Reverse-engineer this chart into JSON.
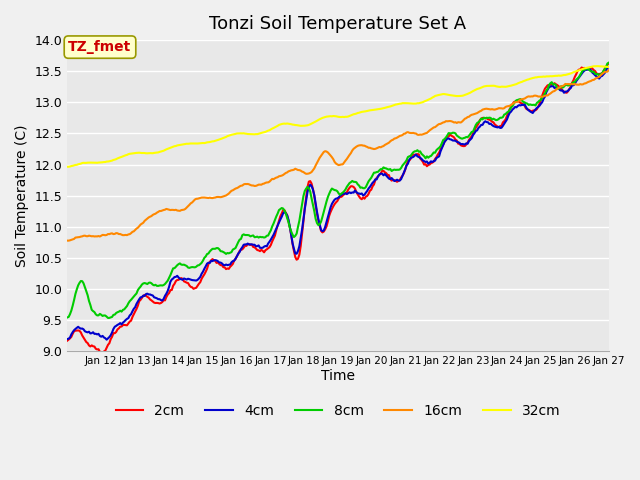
{
  "title": "Tonzi Soil Temperature Set A",
  "xlabel": "Time",
  "ylabel": "Soil Temperature (C)",
  "annotation": "TZ_fmet",
  "ylim": [
    9.0,
    14.0
  ],
  "yticks": [
    9.0,
    9.5,
    10.0,
    10.5,
    11.0,
    11.5,
    12.0,
    12.5,
    13.0,
    13.5,
    14.0
  ],
  "xlim_start": 11,
  "xlim_end": 27,
  "xtick_positions": [
    12,
    13,
    14,
    15,
    16,
    17,
    18,
    19,
    20,
    21,
    22,
    23,
    24,
    25,
    26,
    27
  ],
  "xtick_labels": [
    "Jan 12",
    "Jan 13",
    "Jan 14",
    "Jan 15",
    "Jan 16",
    "Jan 17",
    "Jan 18",
    "Jan 19",
    "Jan 20",
    "Jan 21",
    "Jan 22",
    "Jan 23",
    "Jan 24",
    "Jan 25",
    "Jan 26",
    "Jan 27"
  ],
  "line_colors": {
    "2cm": "#ff0000",
    "4cm": "#0000cc",
    "8cm": "#00cc00",
    "16cm": "#ff8800",
    "32cm": "#ffff00"
  },
  "line_width": 1.5,
  "plot_bg_color": "#e8e8e8",
  "fig_bg_color": "#f0f0f0",
  "grid_color": "#ffffff",
  "title_fontsize": 13,
  "axis_label_fontsize": 10
}
